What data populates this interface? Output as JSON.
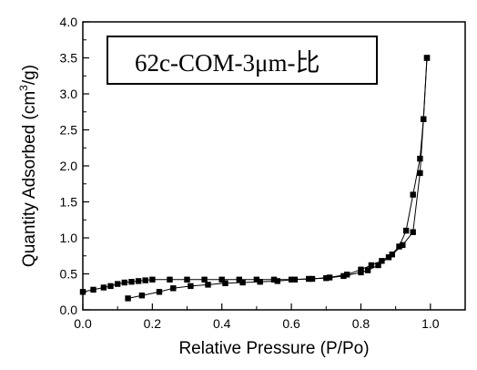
{
  "chart_data": {
    "type": "line",
    "title": "62c-COM-3μm-比",
    "xlabel": "Relative Pressure (P/Po)",
    "ylabel_main": "Quantity Adsorbed (cm",
    "ylabel_sup": "3",
    "ylabel_tail": "/g)",
    "xlim": [
      0.0,
      1.1
    ],
    "ylim": [
      0.0,
      4.0
    ],
    "x_ticks": [
      0.0,
      0.2,
      0.4,
      0.6,
      0.8,
      1.0
    ],
    "x_tick_labels": [
      "0.0",
      "0.2",
      "0.4",
      "0.6",
      "0.8",
      "1.0"
    ],
    "y_ticks": [
      0.0,
      0.5,
      1.0,
      1.5,
      2.0,
      2.5,
      3.0,
      3.5,
      4.0
    ],
    "y_tick_labels": [
      "0.0",
      "0.5",
      "1.0",
      "1.5",
      "2.0",
      "2.5",
      "3.0",
      "3.5",
      "4.0"
    ],
    "grid": false,
    "legend": "none",
    "marker": "square",
    "color": "#000000",
    "series": [
      {
        "x": [
          0.0,
          0.03,
          0.06,
          0.08,
          0.1,
          0.12,
          0.14,
          0.16,
          0.18,
          0.2,
          0.25,
          0.3,
          0.35,
          0.4,
          0.45,
          0.5,
          0.55,
          0.6,
          0.65,
          0.7,
          0.75,
          0.8,
          0.82,
          0.85,
          0.88,
          0.91,
          0.93,
          0.95,
          0.97,
          0.98,
          0.99
        ],
        "y": [
          0.25,
          0.28,
          0.31,
          0.33,
          0.36,
          0.38,
          0.39,
          0.4,
          0.41,
          0.42,
          0.42,
          0.42,
          0.42,
          0.42,
          0.42,
          0.42,
          0.42,
          0.42,
          0.43,
          0.44,
          0.47,
          0.52,
          0.55,
          0.62,
          0.73,
          0.88,
          1.1,
          1.6,
          2.1,
          2.65,
          3.5
        ]
      },
      {
        "x": [
          0.13,
          0.17,
          0.22,
          0.26,
          0.31,
          0.36,
          0.41,
          0.46,
          0.51,
          0.56,
          0.61,
          0.66,
          0.71,
          0.76,
          0.8,
          0.83,
          0.86,
          0.89,
          0.92,
          0.95,
          0.97,
          0.98,
          0.99
        ],
        "y": [
          0.16,
          0.2,
          0.25,
          0.3,
          0.33,
          0.35,
          0.37,
          0.38,
          0.39,
          0.4,
          0.42,
          0.43,
          0.45,
          0.49,
          0.56,
          0.62,
          0.68,
          0.77,
          0.9,
          1.08,
          1.9,
          2.65,
          3.5
        ]
      }
    ]
  }
}
